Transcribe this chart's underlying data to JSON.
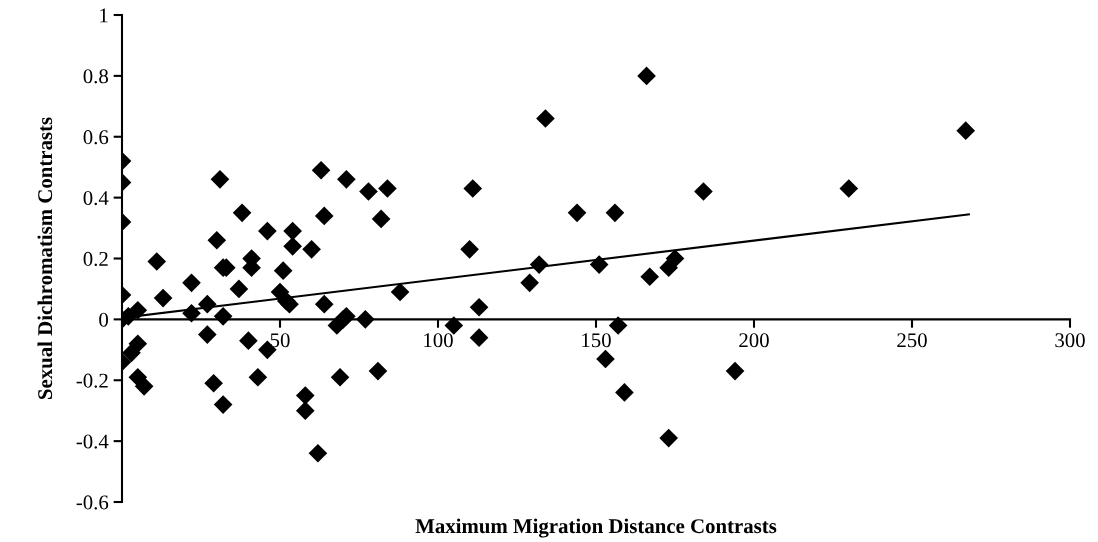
{
  "chart_data": {
    "type": "scatter",
    "xlabel": "Maximum Migration Distance Contrasts",
    "ylabel": "Sexual Dichromatism Contrasts",
    "xlim": [
      0,
      300
    ],
    "xticks": [
      {
        "value": 0,
        "label": null
      },
      50,
      100,
      150,
      200,
      250,
      300
    ],
    "ylim": [
      -0.6,
      1
    ],
    "yticks": [
      -0.6,
      -0.4,
      -0.2,
      0,
      0.2,
      0.4,
      0.6,
      0.8,
      1
    ],
    "grid": false,
    "series": [
      {
        "marker": "diamond",
        "color": "#000000",
        "x": [
          0,
          0,
          0,
          0,
          0,
          0,
          2,
          3,
          5,
          5,
          5,
          7,
          11,
          13,
          22,
          22,
          27,
          27,
          29,
          31,
          30,
          32,
          33,
          32,
          32,
          37,
          38,
          40,
          41,
          41,
          43,
          46,
          46,
          50,
          51,
          52,
          53,
          54,
          54,
          58,
          58,
          60,
          63,
          62,
          64,
          64,
          68,
          70,
          71,
          69,
          71,
          77,
          78,
          84,
          82,
          81,
          88,
          105,
          111,
          110,
          113,
          113,
          129,
          132,
          134,
          144,
          151,
          153,
          156,
          157,
          159,
          166,
          167,
          173,
          173,
          175,
          184,
          194,
          230,
          267
        ],
        "values": [
          0,
          0.08,
          0.32,
          0.45,
          0.52,
          -0.14,
          0.01,
          -0.11,
          0.03,
          -0.08,
          -0.19,
          -0.22,
          0.19,
          0.07,
          0.12,
          0.02,
          -0.05,
          0.05,
          -0.21,
          0.46,
          0.26,
          0.17,
          0.17,
          0.01,
          -0.28,
          0.1,
          0.35,
          -0.07,
          0.17,
          0.2,
          -0.19,
          0.29,
          -0.1,
          0.09,
          0.16,
          0.06,
          0.05,
          0.29,
          0.24,
          -0.25,
          -0.3,
          0.23,
          0.49,
          -0.44,
          0.34,
          0.05,
          -0.02,
          0,
          0.01,
          -0.19,
          0.46,
          0,
          0.42,
          0.43,
          0.33,
          -0.17,
          0.09,
          -0.02,
          0.43,
          0.23,
          0.04,
          -0.06,
          0.12,
          0.18,
          0.66,
          0.35,
          0.18,
          -0.13,
          0.35,
          -0.02,
          -0.24,
          0.8,
          0.14,
          0.17,
          -0.39,
          0.2,
          0.42,
          -0.17,
          0.43,
          0.62
        ]
      },
      {
        "type": "line",
        "color": "#000000",
        "x": [
          0,
          268
        ],
        "values": [
          0.005,
          0.345
        ]
      }
    ]
  }
}
